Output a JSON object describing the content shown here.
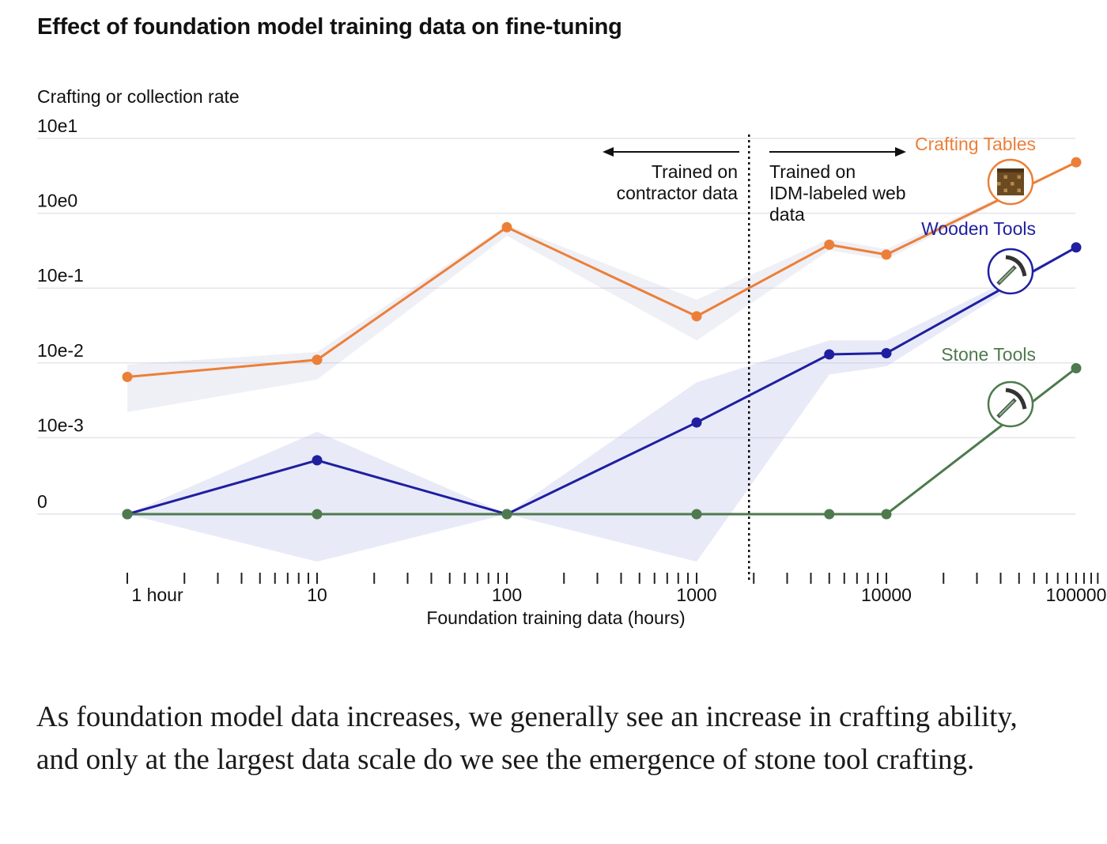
{
  "figure": {
    "title": "Effect of foundation model training data on fine-tuning",
    "caption": "As foundation model data increases, we generally see an increase in crafting ability, and only at the largest data scale do we see the emergence of stone tool crafting."
  },
  "chart_data": {
    "type": "line",
    "ylabel": "Crafting or collection rate",
    "xlabel": "Foundation training data (hours)",
    "x_scale": "log",
    "y_scale": "log (symlog, 0 at bottom)",
    "xlim": [
      1,
      140000
    ],
    "y_ticks": [
      "10e1",
      "10e0",
      "10e-1",
      "10e-2",
      "10e-3",
      "0"
    ],
    "x_tick_labels": [
      {
        "x": 1,
        "label": "1 hour"
      },
      {
        "x": 10,
        "label": "10"
      },
      {
        "x": 100,
        "label": "100"
      },
      {
        "x": 1000,
        "label": "1000"
      },
      {
        "x": 10000,
        "label": "10000"
      },
      {
        "x": 100000,
        "label": "100000"
      }
    ],
    "x_minor_ticks": [
      2,
      3,
      4,
      5,
      6,
      7,
      8,
      9,
      20,
      30,
      40,
      50,
      60,
      70,
      80,
      90,
      200,
      300,
      400,
      500,
      600,
      700,
      800,
      900,
      2000,
      3000,
      4000,
      5000,
      6000,
      7000,
      8000,
      9000,
      20000,
      30000,
      40000,
      50000,
      60000,
      70000,
      80000,
      90000,
      110000,
      120000,
      130000
    ],
    "divider": {
      "x": 2000,
      "left_label": [
        "Trained on",
        "contractor data"
      ],
      "right_label": [
        "Trained on",
        "IDM-labeled web",
        "data"
      ]
    },
    "series": [
      {
        "name": "Crafting Tables",
        "color": "#ec7f37",
        "x": [
          1,
          10,
          100,
          1000,
          5000,
          10000,
          100000
        ],
        "y": [
          0.0065,
          0.011,
          0.65,
          0.042,
          0.38,
          0.28,
          4.8
        ],
        "band_low": [
          0.0022,
          0.006,
          0.5,
          0.02,
          0.32,
          0.24,
          4.8
        ],
        "band_high": [
          0.0095,
          0.014,
          0.7,
          0.07,
          0.45,
          0.33,
          4.8
        ],
        "icon": "crafting-table-icon"
      },
      {
        "name": "Wooden Tools",
        "color": "#1f1fa0",
        "x": [
          1,
          10,
          100,
          1000,
          5000,
          10000,
          100000
        ],
        "y": [
          0,
          0.0005,
          0,
          0.0016,
          0.013,
          0.0135,
          0.35
        ],
        "band_low": [
          0,
          0,
          0,
          0,
          0.007,
          0.009,
          0.35
        ],
        "band_high": [
          0,
          0.0012,
          0,
          0.0055,
          0.02,
          0.02,
          0.35
        ],
        "icon": "wooden-pickaxe-icon"
      },
      {
        "name": "Stone Tools",
        "color": "#4e7a4e",
        "x": [
          1,
          10,
          100,
          1000,
          5000,
          10000,
          100000
        ],
        "y": [
          0,
          0,
          0,
          0,
          0,
          0,
          0.0085
        ],
        "icon": "stone-pickaxe-icon"
      }
    ]
  }
}
